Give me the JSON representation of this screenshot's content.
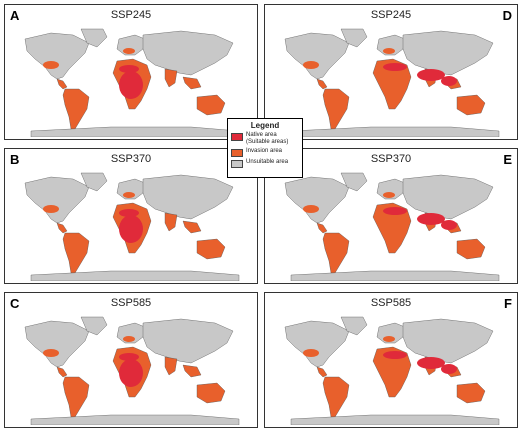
{
  "panels": [
    {
      "letter": "A",
      "title": "SSP245",
      "variant": "left"
    },
    {
      "letter": "B",
      "title": "SSP370",
      "variant": "left"
    },
    {
      "letter": "C",
      "title": "SSP585",
      "variant": "left"
    },
    {
      "letter": "D",
      "title": "SSP245",
      "variant": "right"
    },
    {
      "letter": "E",
      "title": "SSP370",
      "variant": "right"
    },
    {
      "letter": "F",
      "title": "SSP585",
      "variant": "right"
    }
  ],
  "legend": {
    "title": "Legend",
    "items": [
      {
        "label_line1": "Native area",
        "label_line2": "(Suitable areas)",
        "color": "#e02a3a"
      },
      {
        "label_line1": "Invasion area",
        "label_line2": "",
        "color": "#e8602c"
      },
      {
        "label_line1": "Unsuitable area",
        "label_line2": "",
        "color": "#c8c8c8"
      }
    ]
  },
  "colors": {
    "native": "#e02a3a",
    "invasion": "#e8602c",
    "unsuitable": "#c8c8c8",
    "border": "#555555"
  }
}
